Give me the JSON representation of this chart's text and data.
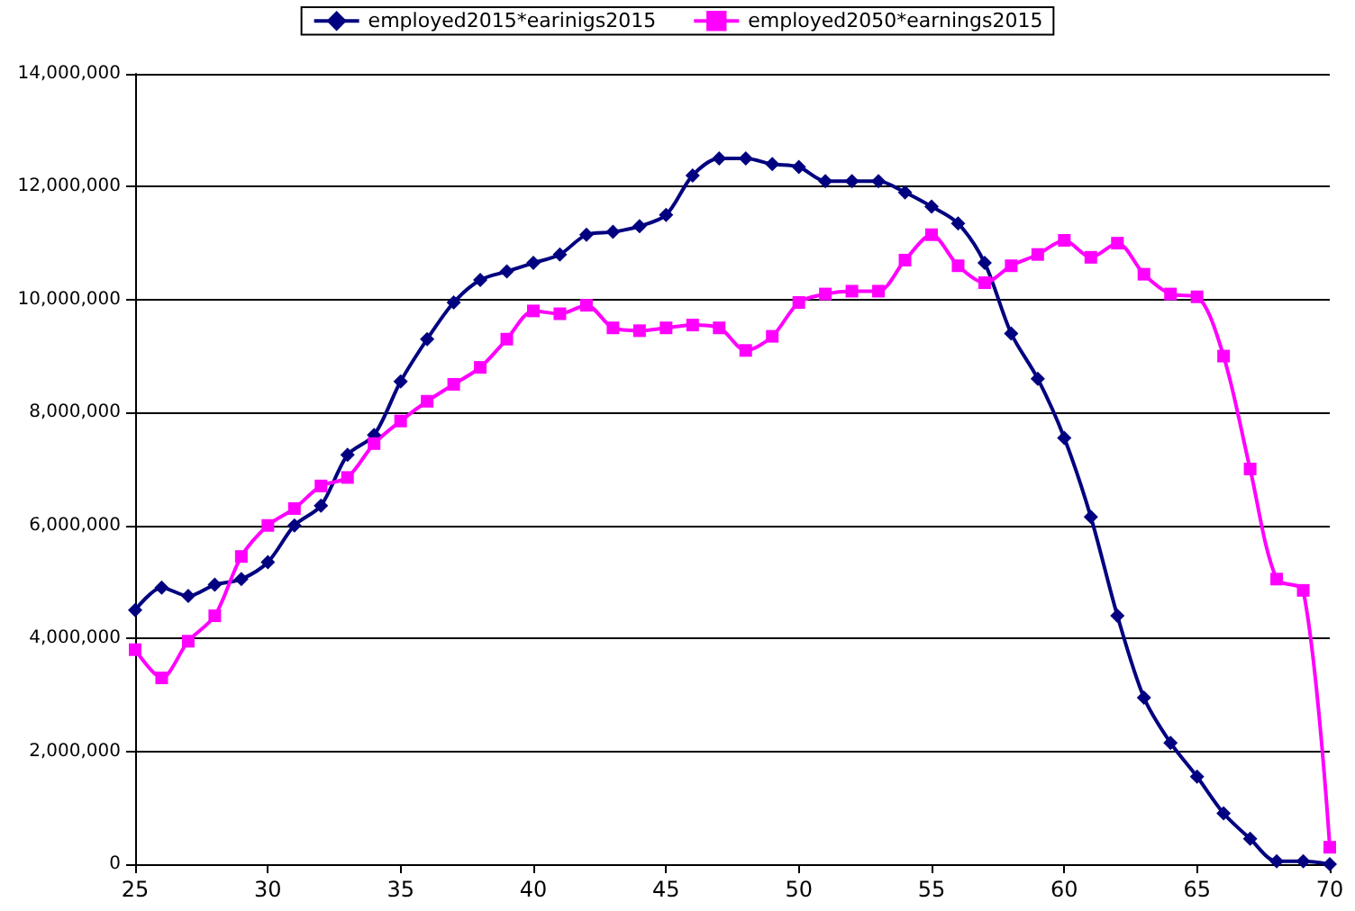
{
  "chart_data": {
    "type": "line",
    "x": [
      25,
      26,
      27,
      28,
      29,
      30,
      31,
      32,
      33,
      34,
      35,
      36,
      37,
      38,
      39,
      40,
      41,
      42,
      43,
      44,
      45,
      46,
      47,
      48,
      49,
      50,
      51,
      52,
      53,
      54,
      55,
      56,
      57,
      58,
      59,
      60,
      61,
      62,
      63,
      64,
      65,
      66,
      67,
      68,
      69,
      70
    ],
    "series": [
      {
        "name": "employed2015*earinigs2015",
        "color": "#000080",
        "marker": "diamond",
        "values": [
          4500000,
          4900000,
          4750000,
          4950000,
          5050000,
          5350000,
          6000000,
          6350000,
          7250000,
          7600000,
          8550000,
          9300000,
          9950000,
          10350000,
          10500000,
          10650000,
          10800000,
          11150000,
          11200000,
          11300000,
          11500000,
          12200000,
          12500000,
          12500000,
          12400000,
          12350000,
          12100000,
          12100000,
          12100000,
          11900000,
          11650000,
          11350000,
          10650000,
          9400000,
          8600000,
          7550000,
          6150000,
          4400000,
          2950000,
          2150000,
          1550000,
          900000,
          450000,
          50000,
          50000,
          0
        ]
      },
      {
        "name": "employed2050*earnings2015",
        "color": "#ff00ff",
        "marker": "square",
        "values": [
          3800000,
          3300000,
          3950000,
          4400000,
          5450000,
          6000000,
          6300000,
          6700000,
          6850000,
          7450000,
          7850000,
          8200000,
          8500000,
          8800000,
          9300000,
          9800000,
          9750000,
          9900000,
          9500000,
          9450000,
          9500000,
          9550000,
          9500000,
          9100000,
          9350000,
          9950000,
          10100000,
          10150000,
          10150000,
          10700000,
          11150000,
          10600000,
          10300000,
          10600000,
          10800000,
          11050000,
          10750000,
          11000000,
          10450000,
          10100000,
          10050000,
          9000000,
          7000000,
          5050000,
          4850000,
          300000
        ]
      }
    ],
    "xlim": [
      25,
      70
    ],
    "xticks": [
      25,
      30,
      35,
      40,
      45,
      50,
      55,
      60,
      65,
      70
    ],
    "ylim": [
      0,
      14000000
    ],
    "yticks": [
      0,
      {
        "value": 2000000,
        "label": "2,000,000"
      },
      {
        "value": 4000000,
        "label": "4,000,000"
      },
      {
        "value": 6000000,
        "label": "6,000,000"
      },
      {
        "value": 8000000,
        "label": "8,000,000"
      },
      {
        "value": 10000000,
        "label": "10,000,000"
      },
      {
        "value": 12000000,
        "label": "12,000,000"
      },
      {
        "value": 14000000,
        "label": "14,000,000"
      }
    ],
    "grid": "y",
    "legend": "top"
  }
}
